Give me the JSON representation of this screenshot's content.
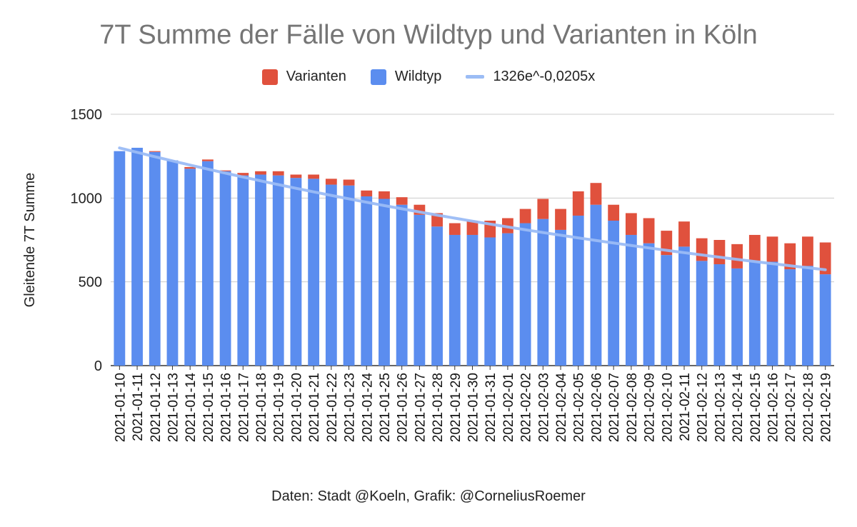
{
  "chart_data": {
    "type": "bar",
    "stacked": true,
    "title": "7T Summe der Fälle von Wildtyp und Varianten in Köln",
    "ylabel": "Gleitende 7T Summe",
    "xlabel": "",
    "ylim": [
      0,
      1500
    ],
    "yticks": [
      0,
      500,
      1000,
      1500
    ],
    "grid": true,
    "legend_position": "top",
    "caption": "Daten: Stadt @Koeln, Grafik: @CorneliusRoemer",
    "categories": [
      "2021-01-10",
      "2021-01-11",
      "2021-01-12",
      "2021-01-13",
      "2021-01-14",
      "2021-01-15",
      "2021-01-16",
      "2021-01-17",
      "2021-01-18",
      "2021-01-19",
      "2021-01-20",
      "2021-01-21",
      "2021-01-22",
      "2021-01-23",
      "2021-01-24",
      "2021-01-25",
      "2021-01-26",
      "2021-01-27",
      "2021-01-28",
      "2021-01-29",
      "2021-01-30",
      "2021-01-31",
      "2021-02-01",
      "2021-02-02",
      "2021-02-03",
      "2021-02-04",
      "2021-02-05",
      "2021-02-06",
      "2021-02-07",
      "2021-02-08",
      "2021-02-09",
      "2021-02-10",
      "2021-02-11",
      "2021-02-12",
      "2021-02-13",
      "2021-02-14",
      "2021-02-15",
      "2021-02-16",
      "2021-02-17",
      "2021-02-18",
      "2021-02-19"
    ],
    "series": [
      {
        "name": "Wildtyp",
        "color": "#5b8def",
        "values": [
          1280,
          1300,
          1275,
          1225,
          1175,
          1220,
          1160,
          1135,
          1140,
          1135,
          1120,
          1115,
          1080,
          1075,
          1010,
          995,
          960,
          900,
          830,
          780,
          780,
          765,
          790,
          850,
          875,
          810,
          895,
          960,
          865,
          780,
          730,
          660,
          710,
          625,
          605,
          580,
          625,
          620,
          575,
          595,
          545
        ]
      },
      {
        "name": "Varianten",
        "color": "#e0513d",
        "values": [
          0,
          0,
          5,
          0,
          10,
          10,
          5,
          15,
          20,
          25,
          20,
          25,
          35,
          35,
          35,
          45,
          45,
          60,
          80,
          70,
          85,
          100,
          90,
          85,
          120,
          125,
          145,
          130,
          95,
          130,
          150,
          145,
          150,
          135,
          145,
          145,
          155,
          150,
          155,
          175,
          190
        ]
      }
    ],
    "trendline": {
      "name": "1326e^-0,0205x",
      "color": "#9bbcf5",
      "a": 1326,
      "b": -0.0205
    }
  }
}
